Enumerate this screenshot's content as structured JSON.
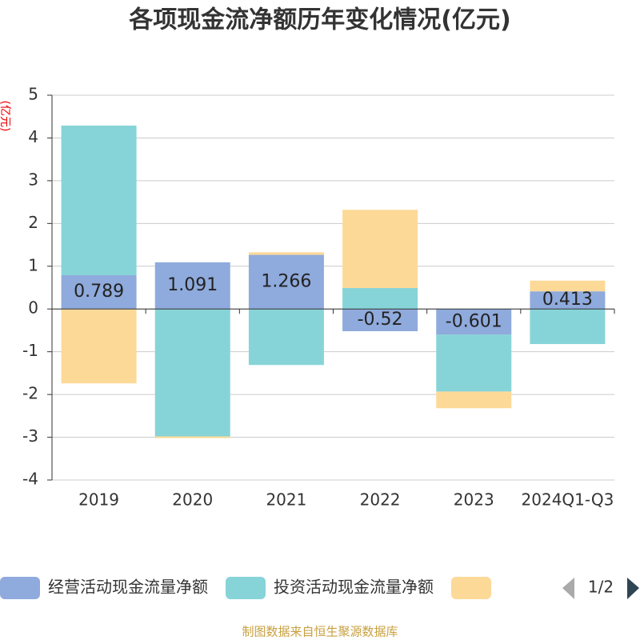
{
  "chart_data": {
    "type": "bar",
    "title": "各项现金流净额历年变化情况(亿元)",
    "y_label": "(亿元)",
    "categories": [
      "2019",
      "2020",
      "2021",
      "2022",
      "2023",
      "2024Q1-Q3"
    ],
    "series": [
      {
        "name": "经营活动现金流量净额",
        "color": "#8faadc",
        "values": [
          0.789,
          1.091,
          1.266,
          -0.52,
          -0.601,
          0.413
        ]
      },
      {
        "name": "投资活动现金流量净额",
        "color": "#86d4d8",
        "values": [
          3.5,
          -2.98,
          -1.31,
          0.49,
          -1.33,
          -0.82
        ]
      },
      {
        "color": "#fdd998",
        "values": [
          -1.74,
          -0.04,
          0.06,
          1.83,
          -0.39,
          0.25
        ]
      }
    ],
    "stacked": true,
    "ylim": [
      -4,
      5
    ],
    "yticks": [
      5,
      4,
      3,
      2,
      1,
      0,
      -1,
      -2,
      -3,
      -4
    ],
    "grid": true,
    "legend_page": "1/2",
    "source": "制图数据来自恒生聚源数据库"
  }
}
